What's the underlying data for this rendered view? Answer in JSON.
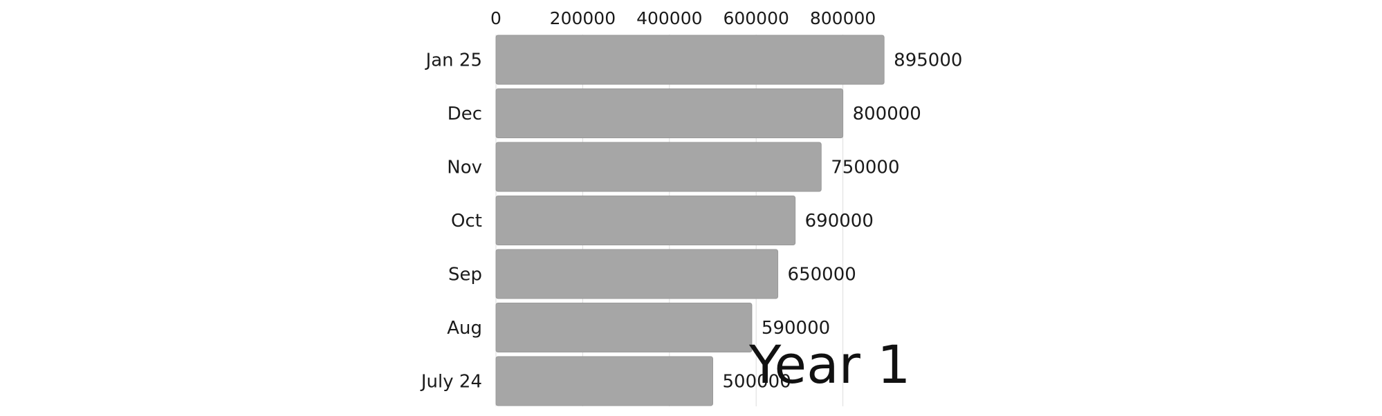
{
  "chart_data": {
    "type": "bar",
    "orientation": "horizontal",
    "categories": [
      "Jan 25",
      "Dec",
      "Nov",
      "Oct",
      "Sep",
      "Aug",
      "July 24"
    ],
    "values": [
      895000,
      800000,
      750000,
      690000,
      650000,
      590000,
      500000
    ],
    "value_labels": [
      "895000",
      "800000",
      "750000",
      "690000",
      "650000",
      "590000",
      "500000"
    ],
    "x_ticks": [
      0,
      200000,
      400000,
      600000,
      800000
    ],
    "x_tick_labels": [
      "0",
      "200000",
      "400000",
      "600000",
      "800000"
    ],
    "xlim": [
      0,
      895000
    ],
    "x_axis_position": "top",
    "grid": true,
    "legend": "none",
    "overlay_label": "Year 1",
    "title": "",
    "xlabel": "",
    "ylabel": "",
    "colors": {
      "bar": "#a6a6a6",
      "bar_stroke": "#999999",
      "grid": "#dddddd",
      "text": "#1a1a1a"
    }
  }
}
